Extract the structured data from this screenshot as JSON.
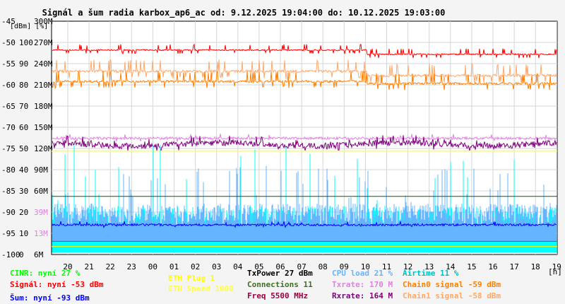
{
  "title": "Signál a šum radia karbox_ap6_ac od: 9.12.2025 19:04:00 do: 10.12.2025 19:03:00",
  "colors": {
    "background": "#f4f4f4",
    "plot_bg": "#ffffff",
    "grid": "#d6d6d6",
    "axis": "#000000",
    "signal": "#ff0000",
    "noise": "#0000ff",
    "cinr": "#00ffff",
    "chain0": "#ff8000",
    "chain1": "#ffa868",
    "cpu": "#64b4ff",
    "txrate": "#e080e0",
    "rxrate": "#800080",
    "eth_speed": "#ffff44",
    "eth_plug": "#ffff00",
    "connections": "#006400",
    "freq": "#a00040"
  },
  "legend": [
    {
      "id": "cinr",
      "text": "CINR: nyní 27 %",
      "color": "#00ff00"
    },
    {
      "id": "signal",
      "text": "Signál: nyní -53 dBm",
      "color": "#ff0000"
    },
    {
      "id": "noise",
      "text": "Šum: nyní -93 dBm",
      "color": "#0000ff"
    },
    {
      "id": "eth_plug",
      "text": "ETH Plug 1",
      "color": "#ffff00"
    },
    {
      "id": "eth_speed",
      "text": "ETH Speed 1000",
      "color": "#ffff44"
    },
    {
      "id": "txpower",
      "text": "TxPower 27 dBm",
      "color": "#000000"
    },
    {
      "id": "connections",
      "text": "Connections 11",
      "color": "#407020"
    },
    {
      "id": "freq",
      "text": "Freq 5500 MHz",
      "color": "#a00040"
    },
    {
      "id": "cpu",
      "text": "CPU load 21 %",
      "color": "#64b4ff"
    },
    {
      "id": "txrate",
      "text": "Txrate: 170 M",
      "color": "#e080e0"
    },
    {
      "id": "rxrate",
      "text": "Rxrate: 164 M",
      "color": "#800080"
    },
    {
      "id": "airtime",
      "text": "Airtime 11 %",
      "color": "#00c0c0"
    },
    {
      "id": "chain0",
      "text": "Chain0 signal -59 dBm",
      "color": "#ff8000"
    },
    {
      "id": "chain1",
      "text": "Chain1 signal -58 dBm",
      "color": "#ffa868"
    }
  ],
  "chart_data": {
    "type": "line",
    "title": "Signál a šum radia karbox_ap6_ac od: 9.12.2025 19:04:00 do: 10.12.2025 19:03:00",
    "xlabel": "[h]",
    "x_ticks": [
      "20",
      "21",
      "22",
      "23",
      "00",
      "01",
      "02",
      "03",
      "04",
      "05",
      "06",
      "07",
      "08",
      "09",
      "10",
      "11",
      "12",
      "13",
      "14",
      "15",
      "16",
      "17",
      "18",
      "19"
    ],
    "ylabel_units": [
      "[dBm]",
      "[%]"
    ],
    "y_dbm_ticks": [
      "-45",
      "-50",
      "-55",
      "-60",
      "-65",
      "-70",
      "-75",
      "-80",
      "-85",
      "-90",
      "-95",
      "-100"
    ],
    "y_pct_ticks": [
      "",
      "100",
      "90",
      "80",
      "70",
      "60",
      "50",
      "40",
      "30",
      "20",
      "10",
      "0"
    ],
    "y_rate_ticks": [
      "300M",
      "270M",
      "240M",
      "210M",
      "180M",
      "150M",
      "120M",
      "90M",
      "60M",
      "39M",
      "13M",
      "6M"
    ],
    "ylim_dbm": [
      -100,
      -45
    ],
    "grid": true,
    "series": [
      {
        "name": "Signál",
        "unit": "dBm",
        "approx": {
          "first_hours": -52,
          "after_midday": -53,
          "spikes_to": -50
        }
      },
      {
        "name": "Chain0 signal",
        "unit": "dBm",
        "approx": {
          "level": -59,
          "range": [
            -60,
            -57
          ]
        }
      },
      {
        "name": "Chain1 signal",
        "unit": "dBm",
        "approx": {
          "level": -58,
          "range": [
            -59,
            -55
          ]
        }
      },
      {
        "name": "Txrate",
        "unit": "M",
        "approx": {
          "level": 170,
          "range": [
            165,
            175
          ]
        }
      },
      {
        "name": "Rxrate",
        "unit": "M",
        "approx": {
          "level": 164,
          "range": [
            150,
            170
          ]
        }
      },
      {
        "name": "ETH Speed",
        "unit": "Mbps",
        "approx": {
          "level": 1000
        }
      },
      {
        "name": "CPU load",
        "unit": "%",
        "approx": {
          "base": 20,
          "peaks": 65
        }
      },
      {
        "name": "Airtime",
        "unit": "%",
        "approx": {
          "base": 10,
          "peaks": 95
        }
      },
      {
        "name": "CINR",
        "unit": "%",
        "approx": {
          "level": 27
        }
      },
      {
        "name": "Šum",
        "unit": "dBm",
        "approx": {
          "level": -93
        }
      },
      {
        "name": "Connections",
        "approx": {
          "level": 11
        }
      }
    ]
  }
}
